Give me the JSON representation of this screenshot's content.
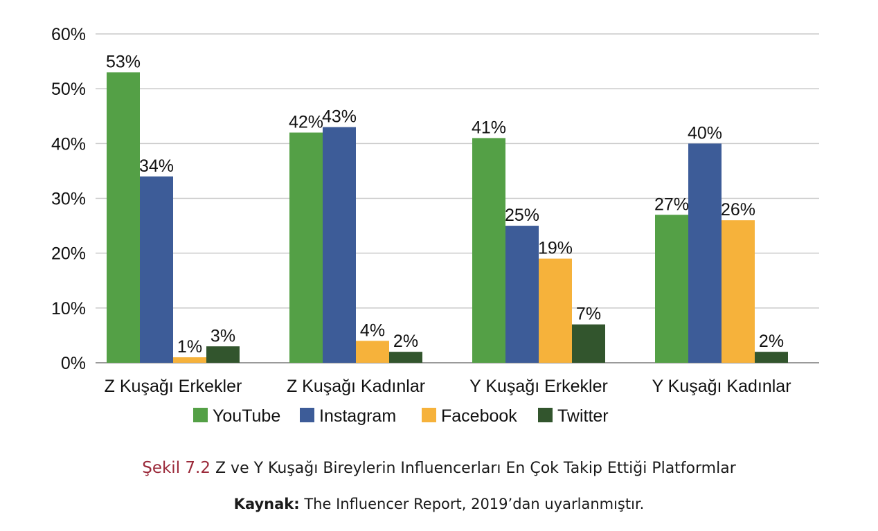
{
  "chart_data": {
    "type": "bar",
    "categories": [
      "Z Kuşağı Erkekler",
      "Z Kuşağı Kadınlar",
      "Y Kuşağı Erkekler",
      "Y Kuşağı Kadınlar"
    ],
    "series": [
      {
        "name": "YouTube",
        "color": "#54a046",
        "values": [
          53,
          42,
          41,
          27
        ],
        "labels": [
          "53%",
          "42%",
          "41%",
          "27%"
        ]
      },
      {
        "name": "Instagram",
        "color": "#3d5c98",
        "values": [
          34,
          43,
          25,
          40
        ],
        "labels": [
          "34%",
          "43%",
          "25%",
          "40%"
        ]
      },
      {
        "name": "Facebook",
        "color": "#f6b23b",
        "values": [
          1,
          4,
          19,
          26
        ],
        "labels": [
          "1%",
          "4%",
          "19%",
          "26%"
        ]
      },
      {
        "name": "Twitter",
        "color": "#32552d",
        "values": [
          3,
          2,
          7,
          2
        ],
        "labels": [
          "3%",
          "2%",
          "7%",
          "2%"
        ]
      }
    ],
    "yticks": [
      0,
      10,
      20,
      30,
      40,
      50,
      60
    ],
    "ytick_labels": [
      "0%",
      "10%",
      "20%",
      "30%",
      "40%",
      "50%",
      "60%"
    ],
    "ylim": [
      0,
      60
    ],
    "grid": true,
    "legend_position": "bottom-center",
    "title": "",
    "xlabel": "",
    "ylabel": ""
  },
  "caption": {
    "figure_label": "Şekil 7.2",
    "text": "Z ve Y Kuşağı Bireylerin Influencerları En Çok Takip Ettiği Platformlar"
  },
  "source": {
    "label": "Kaynak:",
    "text": "The Influencer Report, 2019’dan uyarlanmıştır."
  }
}
